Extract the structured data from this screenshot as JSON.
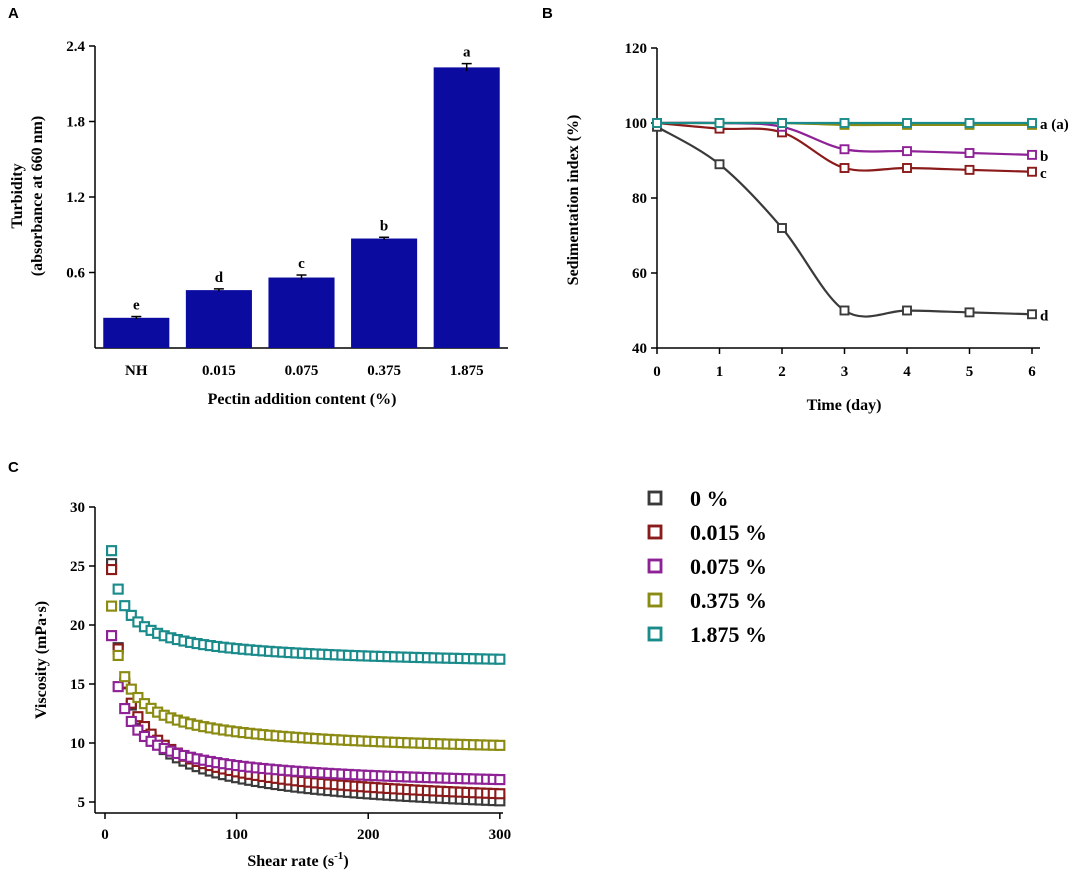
{
  "colors": {
    "bar": "#0b0ba0",
    "s0": "#3a3a3a",
    "s1": "#8b1a1a",
    "s2": "#8e2196",
    "s3": "#8b8b12",
    "s4": "#1a8b8b"
  },
  "chart_data": [
    {
      "id": "A",
      "panel_label": "A",
      "type": "bar",
      "xlabel": "Pectin addition content  (%)",
      "ylabel_line1": "Turbidity",
      "ylabel_line2": "(absorbance at 660 nm)",
      "ylim": [
        0,
        2.4
      ],
      "yticks": [
        "0.6",
        "1.2",
        "1.8",
        "2.4"
      ],
      "categories": [
        "NH",
        "0.015",
        "0.075",
        "0.375",
        "1.875"
      ],
      "values": [
        0.24,
        0.46,
        0.56,
        0.87,
        2.23
      ],
      "errors": [
        0.01,
        0.01,
        0.02,
        0.01,
        0.03
      ],
      "significance": [
        "e",
        "d",
        "c",
        "b",
        "a"
      ]
    },
    {
      "id": "B",
      "panel_label": "B",
      "type": "line",
      "xlabel": "Time (day)",
      "ylabel": "Sedimentation index (%)",
      "xlim": [
        0,
        6
      ],
      "ylim": [
        40,
        120
      ],
      "xticks": [
        "0",
        "1",
        "2",
        "3",
        "4",
        "5",
        "6"
      ],
      "yticks": [
        "40",
        "60",
        "80",
        "100",
        "120"
      ],
      "x": [
        0,
        1,
        2,
        3,
        4,
        5,
        6
      ],
      "series": [
        {
          "name": "0 %",
          "color_key": "s0",
          "values": [
            99,
            89,
            72,
            50,
            50,
            49.5,
            49
          ],
          "label": "d"
        },
        {
          "name": "0.015 %",
          "color_key": "s1",
          "values": [
            100,
            98.5,
            97.5,
            88,
            88,
            87.5,
            87
          ],
          "label": "c"
        },
        {
          "name": "0.075 %",
          "color_key": "s2",
          "values": [
            100,
            100,
            99,
            93,
            92.5,
            92,
            91.5
          ],
          "label": "b"
        },
        {
          "name": "0.375 %",
          "color_key": "s3",
          "values": [
            100,
            100,
            100,
            99.5,
            99.5,
            99.5,
            99.5
          ],
          "label": ""
        },
        {
          "name": "1.875 %",
          "color_key": "s4",
          "values": [
            100,
            100,
            100,
            100,
            100,
            100,
            100
          ],
          "label": "a (a)"
        }
      ]
    },
    {
      "id": "C",
      "panel_label": "C",
      "type": "scatter",
      "xlabel": "Shear rate  (s",
      "xlabel_sup": "-1",
      "xlabel_end": ")",
      "ylabel": "Viscosity (mPa·s)",
      "xlim": [
        0,
        310
      ],
      "ylim": [
        5,
        30
      ],
      "xticks": [
        "0",
        "100",
        "200",
        "300"
      ],
      "yticks": [
        "5",
        "10",
        "15",
        "20",
        "25",
        "30"
      ],
      "x_start": 5,
      "x_end": 300,
      "n_points": 60,
      "series": [
        {
          "name": "0 %",
          "color_key": "s0",
          "start": 25.2,
          "end": 5.1
        },
        {
          "name": "0.015 %",
          "color_key": "s1",
          "start": 24.7,
          "end": 5.7
        },
        {
          "name": "0.075 %",
          "color_key": "s2",
          "start": 19.1,
          "end": 6.9
        },
        {
          "name": "0.375 %",
          "color_key": "s3",
          "start": 21.6,
          "end": 9.8
        },
        {
          "name": "1.875 %",
          "color_key": "s4",
          "start": 26.3,
          "end": 17.1
        }
      ]
    }
  ],
  "legend": [
    {
      "label": "0 %",
      "color_key": "s0"
    },
    {
      "label": "0.015 %",
      "color_key": "s1"
    },
    {
      "label": "0.075 %",
      "color_key": "s2"
    },
    {
      "label": "0.375 %",
      "color_key": "s3"
    },
    {
      "label": "1.875 %",
      "color_key": "s4"
    }
  ]
}
